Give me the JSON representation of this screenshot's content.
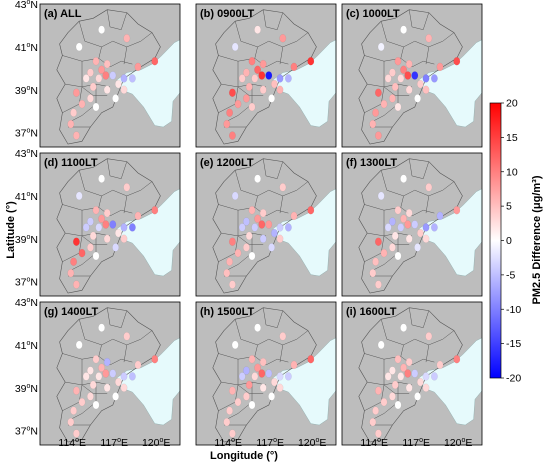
{
  "figure": {
    "x_axis_label": "Longitude (°)",
    "y_axis_label": "Latitude (°)",
    "lon_ticks": [
      {
        "text": "114",
        "sup": "o",
        "suffix": "E"
      },
      {
        "text": "117",
        "sup": "o",
        "suffix": "E"
      },
      {
        "text": "120",
        "sup": "o",
        "suffix": "E"
      }
    ],
    "lat_ticks": [
      {
        "text": "43",
        "sup": "o",
        "suffix": "N"
      },
      {
        "text": "41",
        "sup": "o",
        "suffix": "N"
      },
      {
        "text": "39",
        "sup": "o",
        "suffix": "N"
      },
      {
        "text": "37",
        "sup": "o",
        "suffix": "N"
      }
    ],
    "panels": [
      {
        "title": "(a) ALL"
      },
      {
        "title": "(b) 0900LT"
      },
      {
        "title": "(c) 1000LT"
      },
      {
        "title": "(d) 1100LT"
      },
      {
        "title": "(e) 1200LT"
      },
      {
        "title": "(f) 1300LT"
      },
      {
        "title": "(g) 1400LT"
      },
      {
        "title": "(h) 1500LT"
      },
      {
        "title": "(i) 1600LT"
      }
    ],
    "colorbar": {
      "label": "PM2.5 Difference (μg/m³)",
      "ticks": [
        "20",
        "15",
        "10",
        "5",
        "0",
        "-5",
        "-10",
        "-15",
        "-20"
      ],
      "range": [
        -20,
        20
      ],
      "colors": {
        "low": "#0000ff",
        "mid": "#ffffff",
        "high": "#ff0000"
      }
    },
    "colors": {
      "land": "#bdbdbd",
      "sea": "#e6fafc",
      "border": "#555555"
    }
  }
}
